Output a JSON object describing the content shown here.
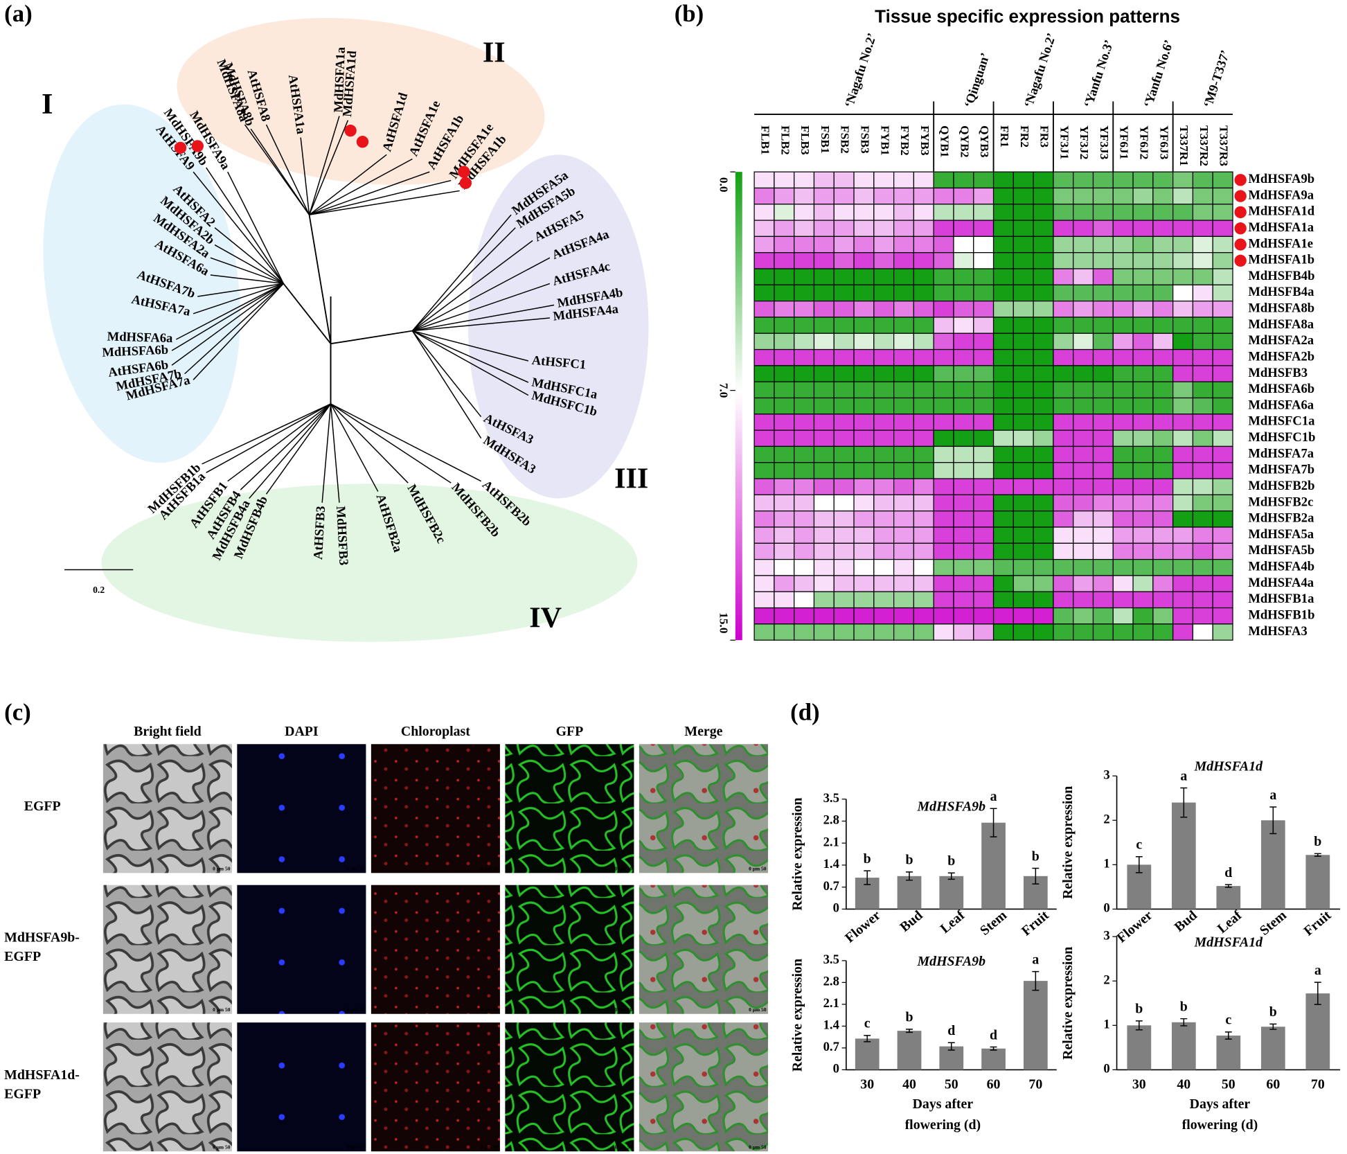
{
  "panel_labels": [
    "(a)",
    "(b)",
    "(c)",
    "(d)"
  ],
  "tree": {
    "groups": [
      "I",
      "II",
      "III",
      "IV"
    ],
    "scale_bar": 0.2,
    "leaves": [
      "MdHSFA9a",
      "MdHSFA9b",
      "AtHSFA9",
      "AtHSFA2",
      "MdHSFA2b",
      "MdHSFA2a",
      "AtHSFA6a",
      "AtHSFA7b",
      "AtHSFA7a",
      "MdHSFA6a",
      "MdHSFA6b",
      "AtHSFA6b",
      "MdHSFA7b",
      "MdHSFA7a",
      "MdHSFA8a",
      "MdHSFA8b",
      "AtHSFA8",
      "AtHSFA1a",
      "MdHSFA1a",
      "MdHSFA1d",
      "AtHSFA1d",
      "AtHSFA1e",
      "AtHSFA1b",
      "MdHSFA1e",
      "MdHSFA1b",
      "MdHSFA5a",
      "MdHSFA5b",
      "AtHSFA5",
      "AtHSFA4a",
      "AtHSFA4c",
      "MdHSFA4b",
      "MdHSFA4a",
      "AtHSFC1",
      "MdHSFC1a",
      "MdHSFC1b",
      "AtHSFA3",
      "MdHSFA3",
      "AtHSFB2b",
      "MdHSFB2b",
      "MdHSFB2c",
      "AtHSFB2a",
      "MdHSFB3",
      "AtHSFB3",
      "MdHSFB4b",
      "MdHSFB4a",
      "AtHSFB4",
      "AtHSFB1",
      "AtHSFB1a",
      "MdHSFB1b"
    ]
  },
  "heatmap": {
    "title": "Tissue specific expression patterns",
    "groups": [
      "‘Nagafu No.2’",
      "‘Qinguan’",
      "‘Nagafu No.2’",
      "‘Yanfu No.3’",
      "‘Yanfu No.6’",
      "‘M9-T337’"
    ],
    "columns": [
      "FLB1",
      "FLB2",
      "FLB3",
      "FSB1",
      "FSB2",
      "FSB3",
      "FYB1",
      "FYB2",
      "FYB3",
      "QYB1",
      "QYB2",
      "QYB3",
      "FR1",
      "FR2",
      "FR3",
      "YF3J1",
      "YF3J2",
      "YF3J3",
      "YF6J1",
      "YF6J2",
      "YF6J3",
      "T337R1",
      "T337R2",
      "T337R3"
    ],
    "rows": [
      "MdHSFA9b",
      "MdHSFA9a",
      "MdHSFA1d",
      "MdHSFA1a",
      "MdHSFA1e",
      "MdHSFA1b",
      "MdHSFB4b",
      "MdHSFB4a",
      "MdHSFA8b",
      "MdHSFA8a",
      "MdHSFA2a",
      "MdHSFA2b",
      "MdHSFB3",
      "MdHSFA6b",
      "MdHSFA6a",
      "MdHSFC1a",
      "MdHSFC1b",
      "MdHSFA7a",
      "MdHSFA7b",
      "MdHSFB2b",
      "MdHSFB2c",
      "MdHSFB2a",
      "MdHSFA5a",
      "MdHSFA5b",
      "MdHSFA4b",
      "MdHSFA4a",
      "MdHSFB1a",
      "MdHSFB1b",
      "MdHSFA3"
    ],
    "lim": [
      0,
      15
    ],
    "colors": [
      "#14a014",
      "#ffffff",
      "#cc00cc"
    ],
    "ticks": [
      {
        "value": 0,
        "label": "0.0"
      },
      {
        "value": 7,
        "label": "7.0"
      },
      {
        "value": 15,
        "label": "15.0"
      }
    ],
    "values": [
      [
        8,
        8,
        8,
        9,
        9,
        8,
        8,
        8,
        8,
        1,
        1,
        1,
        0,
        0,
        0,
        2,
        2,
        2,
        2,
        2,
        2,
        3,
        2,
        2
      ],
      [
        11,
        10,
        9,
        10,
        10,
        9,
        10,
        10,
        10,
        11,
        11,
        10,
        0,
        0,
        0,
        3,
        3,
        3,
        3,
        4,
        3,
        5,
        3,
        3
      ],
      [
        8,
        6,
        8,
        9,
        8,
        8,
        8,
        9,
        8,
        5,
        5,
        5,
        0,
        0,
        0,
        2,
        2,
        2,
        2,
        2,
        2,
        2,
        3,
        3
      ],
      [
        9,
        10,
        9,
        10,
        10,
        9,
        9,
        10,
        10,
        13,
        13,
        13,
        0,
        0,
        0,
        13,
        13,
        12,
        13,
        13,
        13,
        13,
        13,
        13
      ],
      [
        10,
        11,
        11,
        11,
        10,
        11,
        10,
        11,
        11,
        12,
        7,
        7,
        0,
        0,
        0,
        4,
        4,
        4,
        4,
        3,
        4,
        4,
        6,
        5
      ],
      [
        13,
        13,
        13,
        13,
        12,
        13,
        12,
        13,
        13,
        12,
        6,
        7,
        0,
        0,
        0,
        4,
        4,
        4,
        4,
        4,
        4,
        5,
        6,
        4
      ],
      [
        0,
        0,
        0,
        0,
        0,
        0,
        0,
        0,
        0,
        1,
        1,
        1,
        0,
        0,
        0,
        11,
        9,
        12,
        3,
        3,
        3,
        3,
        3,
        5
      ],
      [
        0,
        0,
        0,
        0,
        0,
        0,
        0,
        0,
        0,
        1,
        1,
        1,
        0,
        0,
        0,
        2,
        2,
        2,
        2,
        2,
        2,
        7,
        8,
        5
      ],
      [
        12,
        11,
        11,
        12,
        12,
        11,
        12,
        11,
        12,
        13,
        12,
        12,
        4,
        4,
        4,
        11,
        10,
        11,
        11,
        10,
        11,
        9,
        10,
        10
      ],
      [
        1,
        1,
        1,
        1,
        1,
        1,
        1,
        1,
        1,
        9,
        8,
        9,
        0,
        0,
        0,
        1,
        1,
        1,
        1,
        1,
        1,
        1,
        1,
        1
      ],
      [
        4,
        4,
        5,
        6,
        5,
        6,
        5,
        6,
        5,
        12,
        13,
        13,
        0,
        0,
        0,
        4,
        6,
        2,
        10,
        12,
        9,
        0,
        1,
        1
      ],
      [
        13,
        13,
        13,
        13,
        13,
        13,
        13,
        13,
        13,
        13,
        13,
        13,
        0,
        0,
        0,
        13,
        13,
        13,
        13,
        13,
        13,
        13,
        13,
        13
      ],
      [
        0,
        0,
        0,
        0,
        0,
        0,
        0,
        0,
        0,
        2,
        2,
        2,
        0,
        0,
        0,
        0,
        0,
        0,
        1,
        1,
        1,
        13,
        13,
        13
      ],
      [
        1,
        1,
        1,
        1,
        1,
        1,
        1,
        1,
        1,
        1,
        1,
        1,
        0,
        0,
        0,
        1,
        1,
        1,
        1,
        1,
        1,
        3,
        1,
        1
      ],
      [
        1,
        1,
        1,
        1,
        1,
        1,
        1,
        1,
        1,
        1,
        1,
        1,
        0,
        0,
        0,
        1,
        1,
        1,
        1,
        1,
        1,
        3,
        2,
        1
      ],
      [
        13,
        13,
        13,
        13,
        13,
        13,
        13,
        13,
        13,
        13,
        13,
        13,
        0,
        0,
        0,
        13,
        13,
        13,
        13,
        13,
        13,
        13,
        13,
        13
      ],
      [
        13,
        13,
        13,
        13,
        13,
        13,
        13,
        13,
        13,
        0,
        0,
        0,
        5,
        5,
        4,
        13,
        13,
        13,
        4,
        4,
        3,
        5,
        3,
        5
      ],
      [
        1,
        1,
        1,
        1,
        1,
        1,
        1,
        1,
        1,
        5,
        5,
        5,
        0,
        0,
        0,
        13,
        13,
        13,
        1,
        1,
        1,
        13,
        13,
        13
      ],
      [
        1,
        1,
        1,
        1,
        1,
        1,
        1,
        1,
        1,
        5,
        5,
        5,
        0,
        0,
        0,
        13,
        13,
        13,
        1,
        1,
        1,
        13,
        13,
        13
      ],
      [
        12,
        11,
        11,
        12,
        12,
        11,
        11,
        12,
        11,
        13,
        13,
        13,
        13,
        13,
        13,
        13,
        13,
        13,
        13,
        13,
        13,
        5,
        5,
        4
      ],
      [
        9,
        9,
        9,
        7,
        7,
        8,
        9,
        9,
        9,
        13,
        13,
        13,
        0,
        0,
        0,
        12,
        12,
        11,
        11,
        11,
        11,
        5,
        3,
        3
      ],
      [
        11,
        10,
        10,
        9,
        9,
        10,
        10,
        10,
        10,
        13,
        13,
        13,
        0,
        0,
        0,
        12,
        9,
        9,
        12,
        12,
        12,
        0,
        0,
        0
      ],
      [
        10,
        9,
        10,
        9,
        9,
        9,
        10,
        10,
        10,
        13,
        13,
        13,
        0,
        0,
        0,
        8,
        8,
        8,
        10,
        10,
        10,
        10,
        11,
        11
      ],
      [
        10,
        9,
        10,
        9,
        9,
        9,
        10,
        10,
        10,
        13,
        13,
        13,
        0,
        0,
        0,
        8,
        8,
        8,
        11,
        11,
        11,
        11,
        12,
        11
      ],
      [
        8,
        7,
        7,
        8,
        8,
        7,
        7,
        8,
        7,
        3,
        3,
        3,
        2,
        2,
        2,
        2,
        2,
        2,
        2,
        2,
        2,
        2,
        2,
        2
      ],
      [
        8,
        10,
        9,
        8,
        9,
        9,
        9,
        9,
        9,
        13,
        13,
        13,
        0,
        3,
        3,
        12,
        10,
        11,
        8,
        5,
        11,
        13,
        13,
        13
      ],
      [
        8,
        8,
        7,
        4,
        4,
        4,
        4,
        4,
        4,
        13,
        13,
        13,
        0,
        0,
        0,
        13,
        13,
        13,
        13,
        13,
        13,
        13,
        13,
        13
      ],
      [
        14,
        14,
        14,
        14,
        14,
        14,
        14,
        14,
        14,
        14,
        14,
        14,
        14,
        14,
        14,
        2,
        3,
        2,
        5,
        1,
        3,
        13,
        13,
        13
      ],
      [
        3,
        3,
        3,
        3,
        3,
        3,
        3,
        3,
        3,
        8,
        9,
        10,
        0,
        0,
        0,
        1,
        1,
        1,
        1,
        1,
        1,
        13,
        7,
        4
      ]
    ]
  },
  "microscopy": {
    "columns": [
      "Bright field",
      "DAPI",
      "Chloroplast",
      "GFP",
      "Merge"
    ],
    "rows": [
      [
        "EGFP"
      ],
      [
        "MdHSFA9b-",
        "EGFP"
      ],
      [
        "MdHSFA1d-",
        "EGFP"
      ]
    ],
    "scale_label": "0 μm 50"
  },
  "chart_data": [
    {
      "type": "bar",
      "title": "MdHSFA9b",
      "ylabel": "Relative expression",
      "categories": [
        "Flower",
        "Bud",
        "Leaf",
        "Stem",
        "Fruit"
      ],
      "values": [
        1.0,
        1.05,
        1.05,
        2.75,
        1.05
      ],
      "errors": [
        0.22,
        0.13,
        0.1,
        0.45,
        0.25
      ],
      "annotations": [
        "b",
        "b",
        "b",
        "a",
        "b"
      ],
      "color": "#808080",
      "ylim": [
        0,
        3.5
      ],
      "yticks": [
        0,
        0.7,
        1.4,
        2.1,
        2.8,
        3.5
      ]
    },
    {
      "type": "bar",
      "title": "MdHSFA1d",
      "ylabel": "Relative expression",
      "categories": [
        "Flower",
        "Bud",
        "Leaf",
        "Stem",
        "Fruit"
      ],
      "values": [
        1.0,
        2.4,
        0.52,
        2.0,
        1.22
      ],
      "errors": [
        0.18,
        0.33,
        0.03,
        0.3,
        0.03
      ],
      "annotations": [
        "c",
        "a",
        "d",
        "a",
        "b"
      ],
      "color": "#808080",
      "ylim": [
        0,
        3
      ],
      "yticks": [
        0,
        1,
        2,
        3
      ]
    },
    {
      "type": "bar",
      "title": "MdHSFA9b",
      "ylabel": "Relative expression",
      "xlabel": [
        "Days after",
        "flowering (d)"
      ],
      "categories": [
        "30",
        "40",
        "50",
        "60",
        "70"
      ],
      "values": [
        1.0,
        1.25,
        0.75,
        0.68,
        2.85
      ],
      "errors": [
        0.1,
        0.05,
        0.12,
        0.05,
        0.3
      ],
      "annotations": [
        "c",
        "b",
        "d",
        "d",
        "a"
      ],
      "color": "#808080",
      "ylim": [
        0,
        3.5
      ],
      "yticks": [
        0,
        0.7,
        1.4,
        2.1,
        2.8,
        3.5
      ]
    },
    {
      "type": "bar",
      "title": "MdHSFA1d",
      "ylabel": "Relative expression",
      "xlabel": [
        "Days after",
        "flowering (d)"
      ],
      "categories": [
        "30",
        "40",
        "50",
        "60",
        "70"
      ],
      "values": [
        1.0,
        1.07,
        0.77,
        0.97,
        1.72
      ],
      "errors": [
        0.1,
        0.08,
        0.08,
        0.06,
        0.25
      ],
      "annotations": [
        "b",
        "b",
        "c",
        "b",
        "a"
      ],
      "color": "#808080",
      "ylim": [
        0,
        3
      ],
      "yticks": [
        0,
        1,
        2,
        3
      ]
    }
  ]
}
